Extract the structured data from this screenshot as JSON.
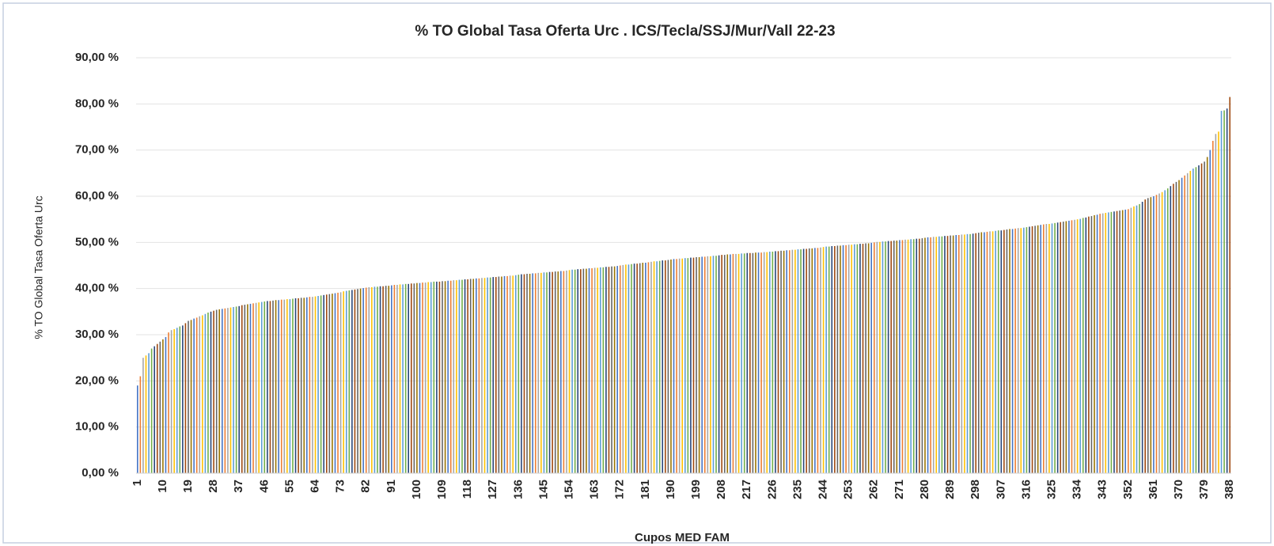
{
  "chart_data": {
    "type": "bar",
    "title": "% TO Global Tasa Oferta Urc . ICS/Tecla/SSJ/Mur/Vall 22-23",
    "x_label": "Cupos MED FAM",
    "y_label": "% TO Global Tasa Oferta Urc",
    "palette": [
      "#4472c4",
      "#ed7d31",
      "#a5a5a5",
      "#ffc000",
      "#5b9bd5",
      "#70ad47",
      "#264478",
      "#9e480e",
      "#636363",
      "#997300"
    ],
    "grid": true,
    "ylim": [
      0,
      90
    ],
    "yticks": [
      {
        "value": 0,
        "label": "0,00 %"
      },
      {
        "value": 10,
        "label": "10,00 %"
      },
      {
        "value": 20,
        "label": "20,00 %"
      },
      {
        "value": 30,
        "label": "30,00 %"
      },
      {
        "value": 40,
        "label": "40,00 %"
      },
      {
        "value": 50,
        "label": "50,00 %"
      },
      {
        "value": 60,
        "label": "60,00 %"
      },
      {
        "value": 70,
        "label": "70,00 %"
      },
      {
        "value": 80,
        "label": "80,00 %"
      },
      {
        "value": 90,
        "label": "90,00 %"
      }
    ],
    "categories": [
      "1",
      null,
      null,
      null,
      null,
      null,
      null,
      null,
      null,
      "10",
      null,
      null,
      null,
      null,
      null,
      null,
      null,
      null,
      "19",
      null,
      null,
      null,
      null,
      null,
      null,
      null,
      null,
      "28",
      null,
      null,
      null,
      null,
      null,
      null,
      null,
      null,
      "37",
      null,
      null,
      null,
      null,
      null,
      null,
      null,
      null,
      "46",
      null,
      null,
      null,
      null,
      null,
      null,
      null,
      null,
      "55",
      null,
      null,
      null,
      null,
      null,
      null,
      null,
      null,
      "64",
      null,
      null,
      null,
      null,
      null,
      null,
      null,
      null,
      "73",
      null,
      null,
      null,
      null,
      null,
      null,
      null,
      null,
      "82",
      null,
      null,
      null,
      null,
      null,
      null,
      null,
      null,
      "91",
      null,
      null,
      null,
      null,
      null,
      null,
      null,
      null,
      "100",
      null,
      null,
      null,
      null,
      null,
      null,
      null,
      null,
      "109",
      null,
      null,
      null,
      null,
      null,
      null,
      null,
      null,
      "118",
      null,
      null,
      null,
      null,
      null,
      null,
      null,
      null,
      "127",
      null,
      null,
      null,
      null,
      null,
      null,
      null,
      null,
      "136",
      null,
      null,
      null,
      null,
      null,
      null,
      null,
      null,
      "145",
      null,
      null,
      null,
      null,
      null,
      null,
      null,
      null,
      "154",
      null,
      null,
      null,
      null,
      null,
      null,
      null,
      null,
      "163",
      null,
      null,
      null,
      null,
      null,
      null,
      null,
      null,
      "172",
      null,
      null,
      null,
      null,
      null,
      null,
      null,
      null,
      "181",
      null,
      null,
      null,
      null,
      null,
      null,
      null,
      null,
      "190",
      null,
      null,
      null,
      null,
      null,
      null,
      null,
      null,
      "199",
      null,
      null,
      null,
      null,
      null,
      null,
      null,
      null,
      "208",
      null,
      null,
      null,
      null,
      null,
      null,
      null,
      null,
      "217",
      null,
      null,
      null,
      null,
      null,
      null,
      null,
      null,
      "226",
      null,
      null,
      null,
      null,
      null,
      null,
      null,
      null,
      "235",
      null,
      null,
      null,
      null,
      null,
      null,
      null,
      null,
      "244",
      null,
      null,
      null,
      null,
      null,
      null,
      null,
      null,
      "253",
      null,
      null,
      null,
      null,
      null,
      null,
      null,
      null,
      "262",
      null,
      null,
      null,
      null,
      null,
      null,
      null,
      null,
      "271",
      null,
      null,
      null,
      null,
      null,
      null,
      null,
      null,
      "280",
      null,
      null,
      null,
      null,
      null,
      null,
      null,
      null,
      "289",
      null,
      null,
      null,
      null,
      null,
      null,
      null,
      null,
      "298",
      null,
      null,
      null,
      null,
      null,
      null,
      null,
      null,
      "307",
      null,
      null,
      null,
      null,
      null,
      null,
      null,
      null,
      "316",
      null,
      null,
      null,
      null,
      null,
      null,
      null,
      null,
      "325",
      null,
      null,
      null,
      null,
      null,
      null,
      null,
      null,
      "334",
      null,
      null,
      null,
      null,
      null,
      null,
      null,
      null,
      "343",
      null,
      null,
      null,
      null,
      null,
      null,
      null,
      null,
      "352",
      null,
      null,
      null,
      null,
      null,
      null,
      null,
      null,
      "361",
      null,
      null,
      null,
      null,
      null,
      null,
      null,
      null,
      "370",
      null,
      null,
      null,
      null,
      null,
      null,
      null,
      null,
      "379",
      null,
      null,
      null,
      null,
      null,
      null,
      null,
      null,
      "388"
    ],
    "values": [
      19,
      21,
      25,
      25.5,
      26,
      27,
      27.5,
      28,
      28.5,
      29,
      29.5,
      30.5,
      31,
      31.2,
      31.5,
      31.8,
      32,
      32.5,
      33,
      33.2,
      33.5,
      33.7,
      34,
      34.2,
      34.5,
      34.8,
      35,
      35.2,
      35.4,
      35.5,
      35.6,
      35.7,
      35.8,
      35.9,
      36.0,
      36.1,
      36.2,
      36.4,
      36.5,
      36.6,
      36.7,
      36.8,
      36.9,
      37.0,
      37.1,
      37.2,
      37.3,
      37.3,
      37.4,
      37.5,
      37.5,
      37.6,
      37.6,
      37.7,
      37.7,
      37.8,
      37.9,
      37.9,
      38.0,
      38.0,
      38.1,
      38.2,
      38.2,
      38.3,
      38.4,
      38.5,
      38.6,
      38.7,
      38.8,
      38.9,
      39.0,
      39.1,
      39.2,
      39.4,
      39.5,
      39.6,
      39.7,
      39.8,
      39.9,
      40.0,
      40.1,
      40.2,
      40.3,
      40.3,
      40.4,
      40.4,
      40.5,
      40.5,
      40.6,
      40.6,
      40.7,
      40.8,
      40.8,
      40.9,
      40.9,
      41.0,
      41.0,
      41.1,
      41.1,
      41.2,
      41.2,
      41.3,
      41.3,
      41.4,
      41.4,
      41.5,
      41.5,
      41.5,
      41.6,
      41.6,
      41.7,
      41.7,
      41.8,
      41.8,
      41.9,
      41.9,
      42.0,
      42.0,
      42.1,
      42.1,
      42.2,
      42.2,
      42.3,
      42.3,
      42.4,
      42.4,
      42.5,
      42.5,
      42.6,
      42.6,
      42.7,
      42.7,
      42.8,
      42.8,
      42.9,
      43.0,
      43.1,
      43.1,
      43.2,
      43.2,
      43.3,
      43.3,
      43.4,
      43.4,
      43.5,
      43.5,
      43.6,
      43.6,
      43.7,
      43.7,
      43.8,
      43.8,
      43.9,
      44.0,
      44.1,
      44.1,
      44.2,
      44.2,
      44.3,
      44.3,
      44.4,
      44.4,
      44.5,
      44.5,
      44.6,
      44.6,
      44.7,
      44.7,
      44.8,
      44.8,
      44.9,
      45.0,
      45.1,
      45.2,
      45.2,
      45.3,
      45.4,
      45.4,
      45.5,
      45.6,
      45.6,
      45.7,
      45.8,
      45.9,
      45.9,
      46.0,
      46.1,
      46.1,
      46.2,
      46.3,
      46.4,
      46.4,
      46.5,
      46.5,
      46.6,
      46.6,
      46.7,
      46.7,
      46.8,
      46.8,
      46.9,
      46.9,
      47.0,
      47.0,
      47.1,
      47.1,
      47.2,
      47.3,
      47.3,
      47.4,
      47.4,
      47.5,
      47.5,
      47.5,
      47.6,
      47.6,
      47.7,
      47.7,
      47.7,
      47.8,
      47.8,
      47.8,
      47.9,
      47.9,
      48.0,
      48.0,
      48.1,
      48.1,
      48.2,
      48.2,
      48.3,
      48.3,
      48.4,
      48.4,
      48.5,
      48.5,
      48.6,
      48.6,
      48.7,
      48.7,
      48.8,
      48.8,
      48.9,
      49.0,
      49.1,
      49.1,
      49.2,
      49.2,
      49.3,
      49.3,
      49.4,
      49.4,
      49.5,
      49.5,
      49.6,
      49.6,
      49.7,
      49.7,
      49.8,
      49.8,
      49.9,
      50.0,
      50.1,
      50.1,
      50.2,
      50.2,
      50.3,
      50.3,
      50.4,
      50.4,
      50.5,
      50.5,
      50.6,
      50.6,
      50.7,
      50.7,
      50.8,
      50.8,
      50.9,
      51.0,
      51.1,
      51.1,
      51.2,
      51.2,
      51.3,
      51.3,
      51.4,
      51.4,
      51.5,
      51.5,
      51.6,
      51.6,
      51.7,
      51.7,
      51.8,
      51.8,
      51.9,
      52.0,
      52.1,
      52.2,
      52.2,
      52.3,
      52.4,
      52.4,
      52.5,
      52.6,
      52.6,
      52.7,
      52.8,
      52.9,
      52.9,
      53.0,
      53.1,
      53.1,
      53.2,
      53.3,
      53.4,
      53.5,
      53.6,
      53.7,
      53.8,
      53.9,
      54.0,
      54.0,
      54.1,
      54.2,
      54.3,
      54.4,
      54.5,
      54.6,
      54.7,
      54.8,
      54.9,
      55.0,
      55.1,
      55.3,
      55.4,
      55.6,
      55.7,
      55.9,
      56.0,
      56.2,
      56.3,
      56.4,
      56.5,
      56.6,
      56.7,
      56.8,
      56.9,
      57.0,
      57.1,
      57.2,
      57.5,
      57.8,
      58.0,
      58.3,
      58.8,
      59.3,
      59.6,
      59.8,
      60.0,
      60.3,
      60.6,
      60.9,
      61.3,
      61.7,
      62.2,
      62.7,
      63.1,
      63.5,
      64.0,
      64.5,
      65.0,
      65.5,
      66.0,
      66.3,
      66.7,
      67.1,
      67.5,
      68.5,
      70.0,
      72.0,
      73.5,
      74.0,
      78.5,
      78.6,
      79.0,
      81.5
    ]
  }
}
